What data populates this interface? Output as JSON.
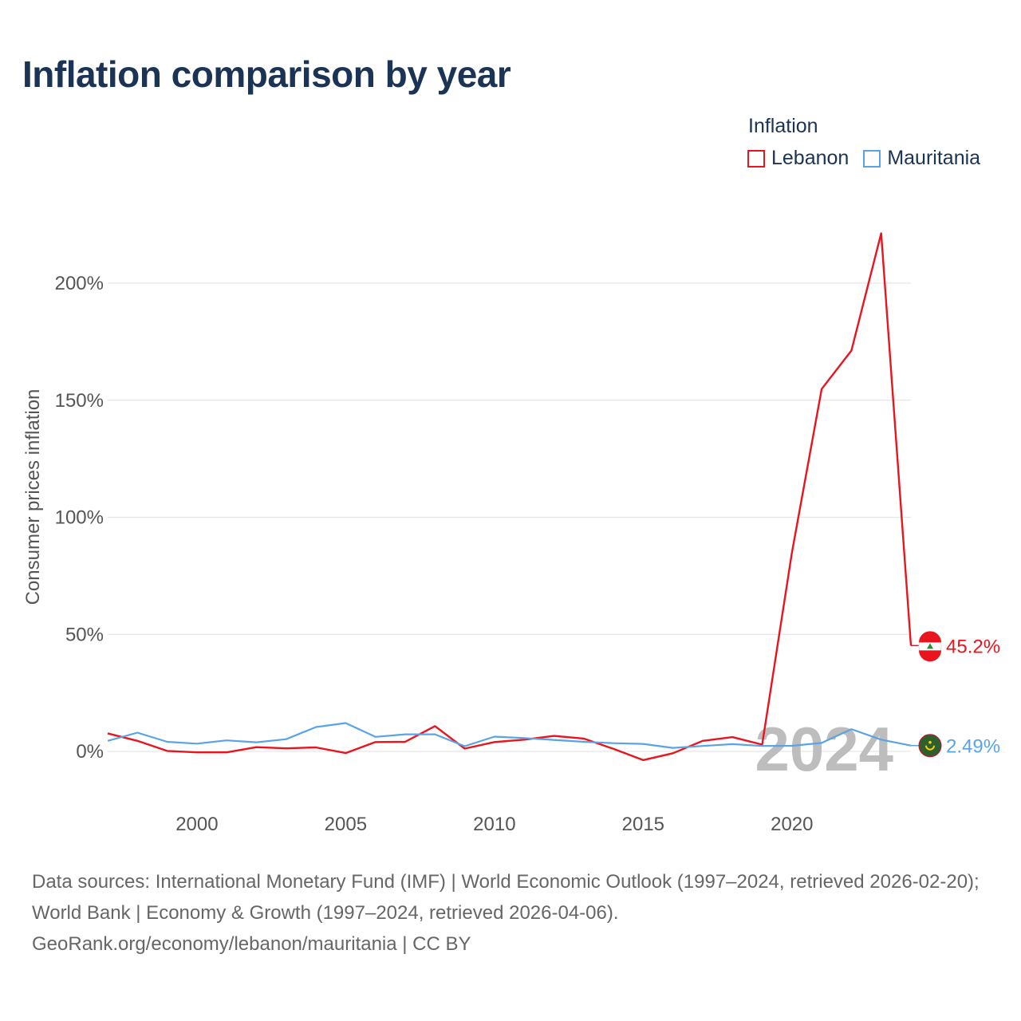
{
  "title": "Inflation comparison by year",
  "legend": {
    "title": "Inflation",
    "items": [
      {
        "label": "Lebanon",
        "color": "#e8141e"
      },
      {
        "label": "Mauritania",
        "color": "#5aa3e6"
      }
    ]
  },
  "source": {
    "line1": "Data sources: International Monetary Fund (IMF) | World Economic Outlook (1997–2024, retrieved 2026-02-20); World Bank | Economy & Growth (1997–2024, retrieved 2026-04-06).",
    "line2": "GeoRank.org/economy/lebanon/mauritania | CC BY"
  },
  "chart_data": {
    "type": "line",
    "title": "Inflation comparison by year",
    "xlabel": "",
    "ylabel": "Consumer prices inflation",
    "xlim": [
      1997,
      2024
    ],
    "ylim": [
      -15,
      222
    ],
    "x_ticks": [
      2000,
      2005,
      2010,
      2015,
      2020
    ],
    "y_ticks": [
      0,
      50,
      100,
      150,
      200
    ],
    "y_tick_labels": [
      "0%",
      "50%",
      "100%",
      "150%",
      "200%"
    ],
    "watermark_year": "2024",
    "x": [
      1997,
      1998,
      1999,
      2000,
      2001,
      2002,
      2003,
      2004,
      2005,
      2006,
      2007,
      2008,
      2009,
      2010,
      2011,
      2012,
      2013,
      2014,
      2015,
      2016,
      2017,
      2018,
      2019,
      2020,
      2021,
      2022,
      2023,
      2024
    ],
    "series": [
      {
        "name": "Lebanon",
        "color": "#e8141e",
        "end_label": "45.2%",
        "values": [
          7.7,
          4.5,
          0.2,
          -0.4,
          -0.4,
          1.8,
          1.3,
          1.7,
          -0.7,
          4.0,
          4.1,
          10.8,
          1.2,
          4.0,
          5.0,
          6.6,
          5.5,
          1.1,
          -3.7,
          -0.8,
          4.5,
          6.1,
          2.9,
          84.9,
          154.8,
          171.2,
          221.3,
          45.2
        ]
      },
      {
        "name": "Mauritania",
        "color": "#5aa3e6",
        "end_label": "2.49%",
        "values": [
          4.5,
          8.0,
          4.1,
          3.3,
          4.7,
          3.9,
          5.2,
          10.4,
          12.1,
          6.2,
          7.3,
          7.3,
          2.2,
          6.3,
          5.7,
          4.9,
          4.1,
          3.5,
          3.2,
          1.5,
          2.3,
          3.1,
          2.3,
          2.4,
          3.6,
          9.5,
          5.0,
          2.49
        ]
      }
    ]
  }
}
